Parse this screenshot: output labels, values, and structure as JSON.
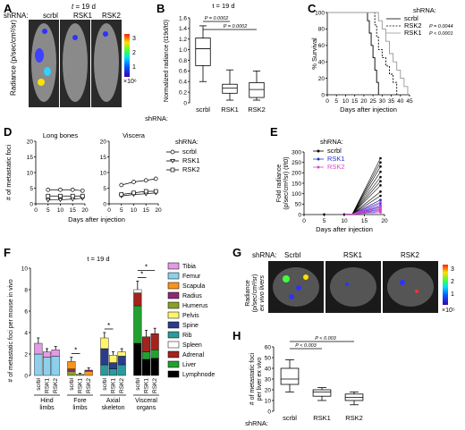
{
  "figure": {
    "panel_labels": [
      "A",
      "B",
      "C",
      "D",
      "E",
      "F",
      "G",
      "H"
    ],
    "shrna_label": "shRNA:",
    "time_label_t": "t",
    "time_label_rest": " = 19 d",
    "groups": [
      "scrbl",
      "RSK1",
      "RSK2"
    ],
    "A": {
      "ylabel": "Radiance (p/sec/cm²/sr)",
      "colorbar_ticks": [
        "3",
        "2",
        "1"
      ],
      "colorbar_mult": "×10⁶"
    },
    "G": {
      "groups": [
        "Scrbl",
        "RSK1",
        "RSK2"
      ],
      "ylabel_line1": "Radiance",
      "ylabel_line2": "(p/sec/cm²/sr)",
      "ylabel_line3": "ex vivo livers",
      "colorbar_ticks": [
        "3",
        "2",
        "1"
      ],
      "colorbar_mult": "×10⁵"
    }
  },
  "chart_data": [
    {
      "panel": "B",
      "type": "box",
      "title": "t = 19 d",
      "ylabel": "Normalized radiance (t19d/t0)",
      "categories": [
        "scrbl",
        "RSK1",
        "RSK2"
      ],
      "ylim": [
        0,
        1.6
      ],
      "yticks": [
        "0",
        "0.2",
        "0.4",
        "0.6",
        "0.8",
        "1.0",
        "1.2",
        "1.4",
        "1.6"
      ],
      "boxes": [
        {
          "min": 0.4,
          "q1": 0.7,
          "median": 1.02,
          "q3": 1.22,
          "max": 1.45
        },
        {
          "min": 0.05,
          "q1": 0.18,
          "median": 0.28,
          "q3": 0.35,
          "max": 0.62
        },
        {
          "min": 0.05,
          "q1": 0.1,
          "median": 0.25,
          "q3": 0.38,
          "max": 0.6
        }
      ],
      "annotations": [
        "P = 0.0002",
        "P = 0.0002"
      ]
    },
    {
      "panel": "C",
      "type": "line",
      "ylabel": "% Survival",
      "xlabel": "Days after injection",
      "xlim": [
        0,
        45
      ],
      "ylim": [
        0,
        100
      ],
      "xticks": [
        "0",
        "5",
        "10",
        "15",
        "20",
        "25",
        "30",
        "35",
        "40",
        "45"
      ],
      "yticks": [
        "0",
        "20",
        "40",
        "60",
        "80",
        "100"
      ],
      "legend_title": "shRNA:",
      "series": [
        {
          "name": "scrbl",
          "points": [
            [
              0,
              100
            ],
            [
              21,
              100
            ],
            [
              22,
              90
            ],
            [
              23,
              75
            ],
            [
              24,
              60
            ],
            [
              25,
              45
            ],
            [
              26,
              30
            ],
            [
              27,
              15
            ],
            [
              28,
              0
            ]
          ]
        },
        {
          "name": "RSK2",
          "p": "P = 0.0044",
          "points": [
            [
              0,
              100
            ],
            [
              25,
              100
            ],
            [
              26,
              85
            ],
            [
              27,
              70
            ],
            [
              28,
              55
            ],
            [
              30,
              45
            ],
            [
              32,
              35
            ],
            [
              34,
              25
            ],
            [
              36,
              15
            ],
            [
              38,
              0
            ]
          ]
        },
        {
          "name": "RSK1",
          "p": "P < 0.0001",
          "points": [
            [
              0,
              100
            ],
            [
              27,
              100
            ],
            [
              28,
              90
            ],
            [
              30,
              80
            ],
            [
              32,
              65
            ],
            [
              34,
              50
            ],
            [
              36,
              40
            ],
            [
              38,
              30
            ],
            [
              40,
              20
            ],
            [
              42,
              10
            ],
            [
              44,
              0
            ]
          ]
        }
      ]
    },
    {
      "panel": "D",
      "type": "line",
      "ylabel": "# of metastatic foci",
      "xlabel": "Days after injection",
      "legend_title": "shRNA:",
      "legend": [
        "scrbl",
        "RSK1",
        "RSK2"
      ],
      "subplots": [
        {
          "title": "Long bones",
          "xlim": [
            0,
            20
          ],
          "ylim": [
            0,
            20
          ],
          "xticks": [
            "0",
            "5",
            "10",
            "15",
            "20"
          ],
          "yticks": [
            "0",
            "5",
            "10",
            "15",
            "20"
          ],
          "series": [
            {
              "name": "scrbl",
              "x": [
                5,
                10,
                15,
                19
              ],
              "y": [
                4.5,
                4.5,
                4.5,
                4.2
              ]
            },
            {
              "name": "RSK1",
              "x": [
                5,
                10,
                15,
                19
              ],
              "y": [
                1.2,
                1.3,
                1.5,
                1.8
              ]
            },
            {
              "name": "RSK2",
              "x": [
                5,
                10,
                15,
                19
              ],
              "y": [
                2.5,
                2.5,
                2.5,
                2.5
              ]
            }
          ]
        },
        {
          "title": "Viscera",
          "xlim": [
            0,
            20
          ],
          "ylim": [
            0,
            20
          ],
          "xticks": [
            "0",
            "5",
            "10",
            "15",
            "20"
          ],
          "yticks": [
            "0",
            "5",
            "10",
            "15",
            "20"
          ],
          "series": [
            {
              "name": "scrbl",
              "x": [
                5,
                10,
                15,
                19
              ],
              "y": [
                6,
                7,
                7.5,
                8
              ]
            },
            {
              "name": "RSK1",
              "x": [
                5,
                10,
                15,
                19
              ],
              "y": [
                2.5,
                3,
                3.2,
                3.5
              ]
            },
            {
              "name": "RSK2",
              "x": [
                5,
                10,
                15,
                19
              ],
              "y": [
                3,
                3.5,
                4,
                4
              ]
            }
          ]
        }
      ]
    },
    {
      "panel": "E",
      "type": "line",
      "ylabel": "Fold radiance (p/sec/cm²/sr) (t/t0)",
      "xlabel": "Days after injection",
      "xlim": [
        0,
        20
      ],
      "ylim": [
        0,
        300
      ],
      "xticks": [
        "0",
        "5",
        "10",
        "15",
        "20"
      ],
      "yticks": [
        "0",
        "50",
        "100",
        "150",
        "200",
        "250",
        "300"
      ],
      "legend_title": "shRNA:",
      "legend": [
        "scrbl",
        "RSK1",
        "RSK2"
      ],
      "series": [
        {
          "name": "scrbl",
          "color": "#000000",
          "end_values": [
            270,
            250,
            230,
            205,
            180,
            160,
            140,
            110,
            90,
            70
          ]
        },
        {
          "name": "RSK1",
          "color": "#2233cc",
          "end_values": [
            70,
            55,
            45,
            35,
            25,
            15
          ]
        },
        {
          "name": "RSK2",
          "color": "#dd44cc",
          "end_values": [
            60,
            40,
            30,
            20,
            10
          ]
        }
      ]
    },
    {
      "panel": "F",
      "type": "bar",
      "stacked": true,
      "title": "t = 19 d",
      "ylabel": "# of metastatic foci per mouse in vivo",
      "ylim": [
        0,
        10
      ],
      "yticks": [
        "0",
        "2",
        "4",
        "6",
        "8",
        "10"
      ],
      "group_labels": [
        "Hind limbs",
        "Fore limbs",
        "Axial skeleton",
        "Visceral organs"
      ],
      "bar_labels": [
        "scrbl",
        "RSK1",
        "RSK2"
      ],
      "legend": [
        {
          "name": "Tibia",
          "color": "#e39be3"
        },
        {
          "name": "Femur",
          "color": "#8ecfec"
        },
        {
          "name": "Scapula",
          "color": "#f7941d"
        },
        {
          "name": "Radius",
          "color": "#8b2a72"
        },
        {
          "name": "Humerus",
          "color": "#8aa02b"
        },
        {
          "name": "Pelvis",
          "color": "#fff56d"
        },
        {
          "name": "Spine",
          "color": "#2c3c8c"
        },
        {
          "name": "Rib",
          "color": "#2a9a9a"
        },
        {
          "name": "Spleen",
          "color": "#ffffff"
        },
        {
          "name": "Adrenal",
          "color": "#a3231e"
        },
        {
          "name": "Liver",
          "color": "#23a032"
        },
        {
          "name": "Lymphnode",
          "color": "#000000"
        }
      ],
      "groups": [
        {
          "name": "Hind limbs",
          "bars": [
            {
              "segments": [
                [
                  "Femur",
                  2.0
                ],
                [
                  "Tibia",
                  1.0
                ]
              ],
              "err": 0.5
            },
            {
              "segments": [
                [
                  "Femur",
                  1.7
                ],
                [
                  "Tibia",
                  0.5
                ]
              ],
              "err": 0.3
            },
            {
              "segments": [
                [
                  "Femur",
                  1.8
                ],
                [
                  "Tibia",
                  0.6
                ]
              ],
              "err": 0.3
            }
          ]
        },
        {
          "name": "Fore limbs",
          "bars": [
            {
              "segments": [
                [
                  "Humerus",
                  0.4
                ],
                [
                  "Radius",
                  0.2
                ],
                [
                  "Scapula",
                  0.7
                ]
              ],
              "err": 0.4
            },
            {
              "segments": [
                [
                  "Humerus",
                  0.1
                ]
              ],
              "err": 0.1
            },
            {
              "segments": [
                [
                  "Scapula",
                  0.4
                ],
                [
                  "Radius",
                  0.1
                ]
              ],
              "err": 0.2
            }
          ]
        },
        {
          "name": "Axial skeleton",
          "bars": [
            {
              "segments": [
                [
                  "Rib",
                  1.0
                ],
                [
                  "Spine",
                  1.5
                ],
                [
                  "Pelvis",
                  1.0
                ]
              ],
              "err": 0.5
            },
            {
              "segments": [
                [
                  "Rib",
                  0.6
                ],
                [
                  "Spine",
                  0.6
                ],
                [
                  "Pelvis",
                  0.7
                ]
              ],
              "err": 0.3
            },
            {
              "segments": [
                [
                  "Rib",
                  1.0
                ],
                [
                  "Spine",
                  0.8
                ],
                [
                  "Pelvis",
                  0.4
                ]
              ],
              "err": 0.3
            }
          ]
        },
        {
          "name": "Visceral organs",
          "bars": [
            {
              "segments": [
                [
                  "Lymphnode",
                  3.0
                ],
                [
                  "Liver",
                  3.5
                ],
                [
                  "Adrenal",
                  1.2
                ],
                [
                  "Spleen",
                  0.3
                ]
              ],
              "err": 0.8
            },
            {
              "segments": [
                [
                  "Lymphnode",
                  1.5
                ],
                [
                  "Liver",
                  0.7
                ],
                [
                  "Adrenal",
                  1.4
                ]
              ],
              "err": 0.6
            },
            {
              "segments": [
                [
                  "Lymphnode",
                  1.6
                ],
                [
                  "Liver",
                  0.8
                ],
                [
                  "Adrenal",
                  1.5
                ]
              ],
              "err": 0.5
            }
          ]
        }
      ],
      "significance": [
        "*",
        "*",
        "*",
        "*"
      ]
    },
    {
      "panel": "H",
      "type": "box",
      "ylabel": "# of metastatic foci per liver ex vivo",
      "categories": [
        "scrbl",
        "RSK1",
        "RSK2"
      ],
      "ylim": [
        0,
        60
      ],
      "yticks": [
        "0",
        "10",
        "20",
        "30",
        "40",
        "50",
        "60"
      ],
      "boxes": [
        {
          "min": 18,
          "q1": 25,
          "median": 30,
          "q3": 40,
          "max": 48
        },
        {
          "min": 10,
          "q1": 14,
          "median": 18,
          "q3": 20,
          "max": 22
        },
        {
          "min": 6,
          "q1": 10,
          "median": 13,
          "q3": 16,
          "max": 18
        }
      ],
      "annotations": [
        "P < 0.003",
        "P < 0.003"
      ]
    }
  ]
}
